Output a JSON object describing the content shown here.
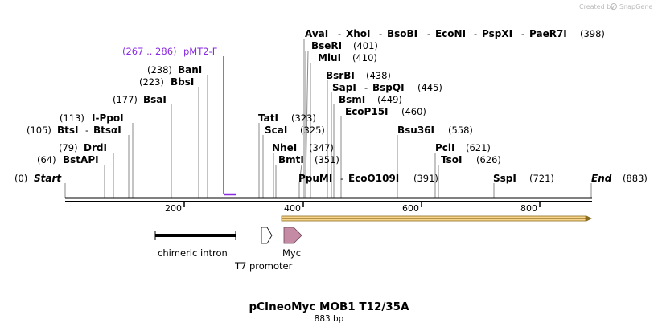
{
  "header": {
    "credit_prefix": "Created by",
    "credit_brand": "SnapGene"
  },
  "colors": {
    "primer": "#8a2be2",
    "orf_fill": "#f7d58c",
    "orf_stroke": "#8a6b1f",
    "myc_fill": "#c58ba5",
    "tick_line": "#888888"
  },
  "map": {
    "start_label": "Start",
    "start_pos": "(0)",
    "end_label": "End",
    "end_pos": "(883)",
    "length_bp": 883,
    "ruler_ticks": [
      "200",
      "400",
      "600",
      "800"
    ]
  },
  "primer": {
    "range": "(267 .. 286)",
    "name": "pMT2-F"
  },
  "enzymes": [
    {
      "id": "bstapi",
      "pos": "(64)",
      "name": "BstAPI"
    },
    {
      "id": "drdi",
      "pos": "(79)",
      "name": "DrdI"
    },
    {
      "id": "btsi",
      "pos": "(105)",
      "name": "BtsI",
      "sep": "-",
      "name2": "BtsαI"
    },
    {
      "id": "ippoi",
      "pos": "(113)",
      "name": "I-PpoI"
    },
    {
      "id": "bsai",
      "pos": "(177)",
      "name": "BsaI"
    },
    {
      "id": "bbsi",
      "pos": "(223)",
      "name": "BbsI"
    },
    {
      "id": "bani",
      "pos": "(238)",
      "name": "BanI"
    },
    {
      "id": "tati",
      "name": "TatI",
      "pos": "(323)"
    },
    {
      "id": "scai",
      "name": "ScaI",
      "pos": "(325)"
    },
    {
      "id": "nhei",
      "name": "NheI",
      "pos": "(347)"
    },
    {
      "id": "bmti",
      "name": "BmtI",
      "pos": "(351)"
    },
    {
      "id": "ppumi",
      "name": "PpuMI",
      "sep": "-",
      "name2": "EcoO109I",
      "pos": "(391)"
    },
    {
      "id": "avai",
      "name": "AvaI",
      "sep": "-",
      "name2": "XhoI",
      "sep2": "-",
      "name3": "BsoBI",
      "sep3": "-",
      "name4": "EcoNI",
      "sep4": "-",
      "name5": "PspXI",
      "sep5": "-",
      "name6": "PaeR7I",
      "pos": "(398)"
    },
    {
      "id": "bseri",
      "name": "BseRI",
      "pos": "(401)"
    },
    {
      "id": "mlui",
      "name": "MluI",
      "pos": "(410)"
    },
    {
      "id": "bsrbi",
      "name": "BsrBI",
      "pos": "(438)"
    },
    {
      "id": "sapi",
      "name": "SapI",
      "sep": "-",
      "name2": "BspQI",
      "pos": "(445)"
    },
    {
      "id": "bsmi",
      "name": "BsmI",
      "pos": "(449)"
    },
    {
      "id": "ecop15i",
      "name": "EcoP15I",
      "pos": "(460)"
    },
    {
      "id": "bsu36i",
      "name": "Bsu36I",
      "pos": "(558)"
    },
    {
      "id": "pcii",
      "name": "PciI",
      "pos": "(621)"
    },
    {
      "id": "tsoi",
      "name": "TsoI",
      "pos": "(626)"
    },
    {
      "id": "sspi",
      "name": "SspI",
      "pos": "(721)"
    }
  ],
  "features": {
    "intron": "chimeric intron",
    "t7": "T7 promoter",
    "myc": "Myc"
  },
  "footer": {
    "title": "pCIneoMyc MOB1 T12/35A",
    "length": "883 bp"
  }
}
